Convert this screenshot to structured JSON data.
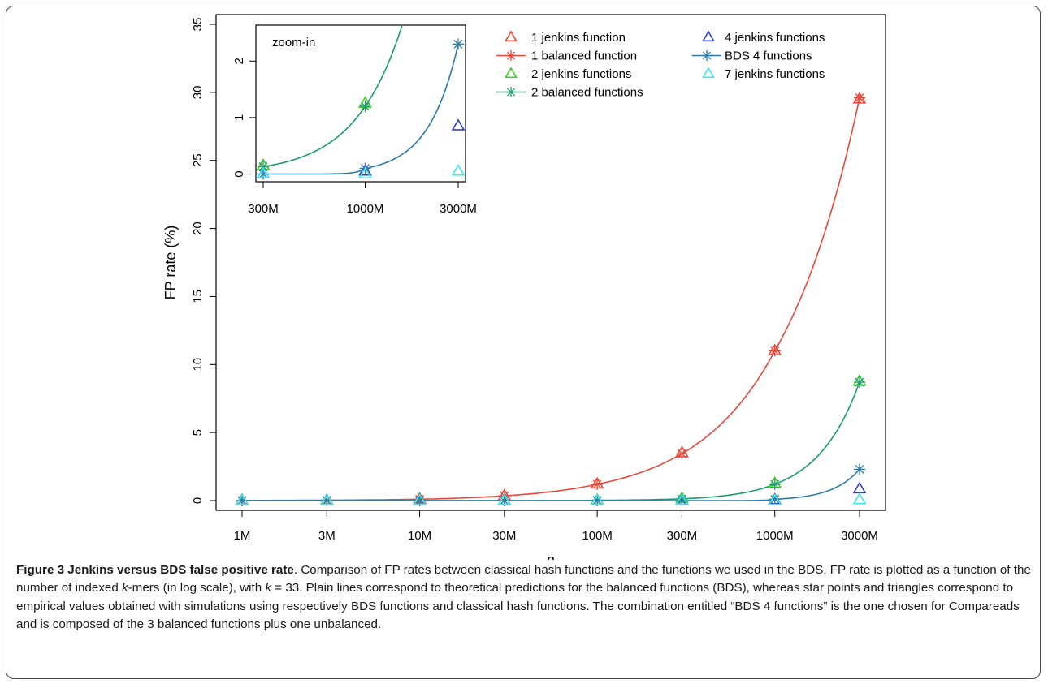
{
  "caption": {
    "title": "Figure 3 Jenkins versus BDS false positive rate",
    "s1": ". Comparison of FP rates between classical hash functions and the functions we used in the BDS. FP rate is plotted as a function of the number of indexed ",
    "k1": "k",
    "s2": "-mers (in log scale), with ",
    "k2": "k",
    "s3": " = 33. Plain lines correspond to theoretical predictions for the balanced functions (BDS), whereas star points and triangles correspond to empirical values obtained with simulations using respectively BDS functions and classical hash functions. The combination entitled “BDS 4 functions” is the one chosen for Compareads and is composed of the 3 balanced functions plus one unbalanced."
  },
  "chart_data": [
    {
      "type": "line",
      "title": "",
      "xlabel": "n",
      "ylabel": "FP rate (%)",
      "x_scale": "log",
      "categories": [
        "1M",
        "3M",
        "10M",
        "30M",
        "100M",
        "300M",
        "1000M",
        "3000M"
      ],
      "x_values": [
        1000000,
        3000000,
        10000000,
        30000000,
        100000000,
        300000000,
        1000000000,
        3000000000
      ],
      "ylim": [
        0,
        35
      ],
      "yticks": [
        0,
        5,
        10,
        15,
        20,
        25,
        30,
        35
      ],
      "legend_position": "top-right",
      "series": [
        {
          "name": "1 jenkins function",
          "kind": "triangle",
          "color": "#e8483a",
          "values": [
            0.01,
            0.03,
            0.1,
            0.35,
            1.2,
            3.5,
            11.0,
            29.5
          ]
        },
        {
          "name": "1 balanced function",
          "kind": "star-line",
          "color": "#e8483a",
          "values": [
            0.01,
            0.03,
            0.1,
            0.35,
            1.2,
            3.45,
            11.0,
            29.6
          ]
        },
        {
          "name": "2 jenkins functions",
          "kind": "triangle",
          "color": "#3fcf2a",
          "values": [
            0.0,
            0.0,
            0.0,
            0.0,
            0.02,
            0.15,
            1.25,
            8.75
          ]
        },
        {
          "name": "2 balanced functions",
          "kind": "star-line",
          "color": "#1b9c6b",
          "values": [
            0.0,
            0.0,
            0.0,
            0.0,
            0.02,
            0.13,
            1.2,
            8.7
          ]
        },
        {
          "name": "4 jenkins functions",
          "kind": "triangle",
          "color": "#2b3fd1",
          "values": [
            0.0,
            0.0,
            0.0,
            0.0,
            0.0,
            0.0,
            0.05,
            0.85
          ]
        },
        {
          "name": "BDS 4 functions",
          "kind": "star-line",
          "color": "#2e7aa6",
          "values": [
            0.0,
            0.0,
            0.0,
            0.0,
            0.0,
            0.0,
            0.1,
            2.3
          ]
        },
        {
          "name": "7 jenkins functions",
          "kind": "triangle",
          "color": "#3fe6ea",
          "values": [
            0.0,
            0.0,
            0.0,
            0.0,
            0.0,
            0.0,
            0.0,
            0.05
          ]
        }
      ]
    },
    {
      "type": "line",
      "title": "zoom-in",
      "x_scale": "log",
      "categories": [
        "300M",
        "1000M",
        "3000M"
      ],
      "x_values": [
        300000000,
        1000000000,
        3000000000
      ],
      "ylim": [
        -0.05,
        2.55
      ],
      "yticks": [
        0,
        1,
        2
      ],
      "series": [
        {
          "name": "2 jenkins functions",
          "kind": "triangle",
          "color": "#3fcf2a",
          "values": [
            0.15,
            1.25,
            null
          ]
        },
        {
          "name": "2 balanced functions",
          "kind": "star-line",
          "color": "#1b9c6b",
          "values": [
            0.13,
            1.2,
            8.7
          ]
        },
        {
          "name": "4 jenkins functions",
          "kind": "triangle",
          "color": "#2b3fd1",
          "values": [
            0.0,
            0.05,
            0.85
          ]
        },
        {
          "name": "BDS 4 functions",
          "kind": "star-line",
          "color": "#2e7aa6",
          "values": [
            0.0,
            0.1,
            2.3
          ]
        },
        {
          "name": "7 jenkins functions",
          "kind": "triangle",
          "color": "#3fe6ea",
          "values": [
            0.0,
            0.0,
            0.05
          ]
        }
      ]
    }
  ]
}
